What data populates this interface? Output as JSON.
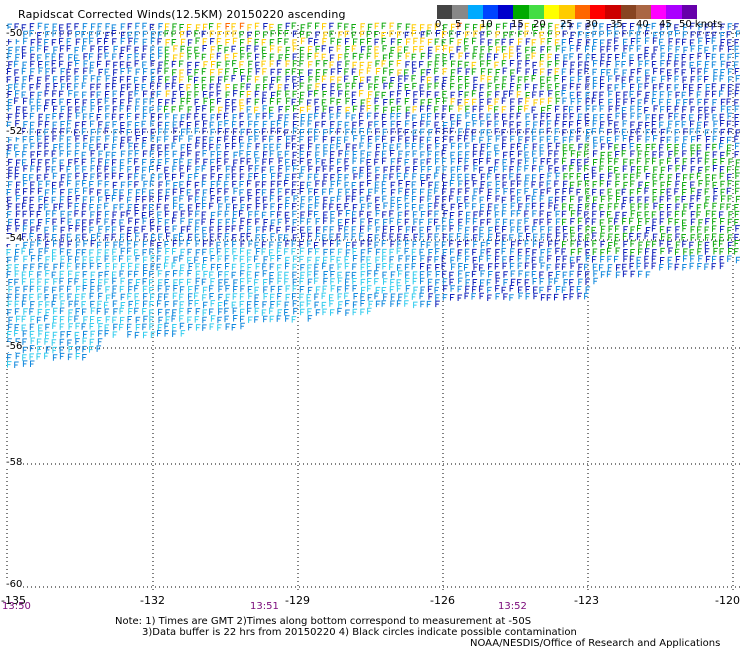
{
  "title": "Rapidscat Corrected Winds(12.5KM) 20150220 ascending",
  "scale": {
    "colors": [
      "#444444",
      "#888888",
      "#00aaff",
      "#0044ff",
      "#0000cc",
      "#00aa00",
      "#44dd44",
      "#ffff00",
      "#ffcc00",
      "#ff6600",
      "#ff0000",
      "#cc0000",
      "#884422",
      "#aa6644",
      "#ff00ff",
      "#aa00ff",
      "#6600aa"
    ],
    "labels": [
      "0",
      "5",
      "10",
      "15",
      "20",
      "25",
      "30",
      "35",
      "40",
      "45",
      "50 knots"
    ]
  },
  "axes": {
    "lon_labels": [
      "-135",
      "-132",
      "-129",
      "-126",
      "-123",
      "-120"
    ],
    "lat_labels": [
      "-50",
      "-52",
      "-54",
      "-56",
      "-58",
      "-60"
    ]
  },
  "times": [
    "13:50",
    "13:51",
    "13:52"
  ],
  "notes": {
    "line1": "Note: 1) Times are GMT 2)Times along bottom correspond to measurement at -50S",
    "line2": "3)Data buffer is 22 hrs from 20150220 4) Black circles indicate possible contamination",
    "credit": "NOAA/NESDIS/Office of Research and Applications"
  }
}
